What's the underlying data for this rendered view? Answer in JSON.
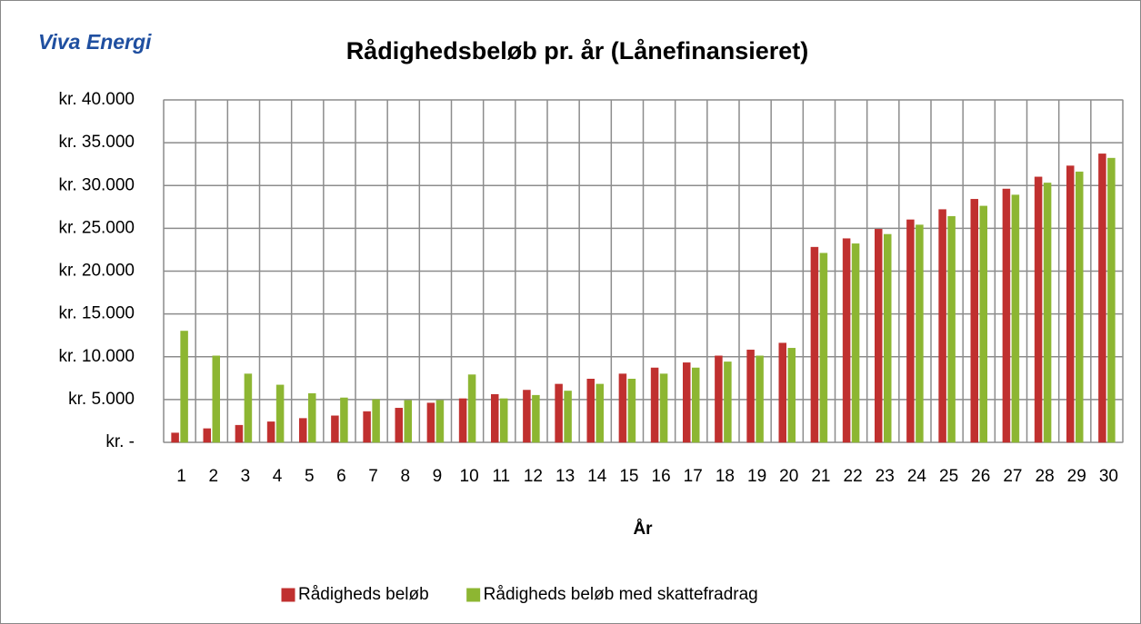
{
  "chart_data": {
    "type": "bar",
    "logo": "Viva Energi",
    "title": "Rådighedsbeløb pr. år (Lånefinansieret)",
    "x_label": "År",
    "categories": [
      "1",
      "2",
      "3",
      "4",
      "5",
      "6",
      "7",
      "8",
      "9",
      "10",
      "11",
      "12",
      "13",
      "14",
      "15",
      "16",
      "17",
      "18",
      "19",
      "20",
      "21",
      "22",
      "23",
      "24",
      "25",
      "26",
      "27",
      "28",
      "29",
      "30"
    ],
    "series": [
      {
        "name": "Rådigheds beløb",
        "color": "#c0302f",
        "values": [
          1100,
          1600,
          2000,
          2400,
          2800,
          3100,
          3600,
          4000,
          4600,
          5100,
          5600,
          6100,
          6800,
          7400,
          8000,
          8700,
          9300,
          10100,
          10800,
          11600,
          22800,
          23800,
          24900,
          26000,
          27200,
          28400,
          29600,
          31000,
          32300,
          33700
        ]
      },
      {
        "name": "Rådigheds beløb med skattefradrag",
        "color": "#8db632",
        "values": [
          13000,
          10100,
          8000,
          6700,
          5700,
          5200,
          5000,
          4900,
          4900,
          7900,
          5100,
          5500,
          6000,
          6800,
          7400,
          8000,
          8700,
          9400,
          10100,
          11000,
          22100,
          23200,
          24300,
          25400,
          26400,
          27600,
          28900,
          30300,
          31600,
          33200
        ]
      }
    ],
    "ylim": [
      0,
      40000
    ],
    "yticks": [
      {
        "value": 0,
        "label": "kr. -"
      },
      {
        "value": 5000,
        "label": "kr. 5.000"
      },
      {
        "value": 10000,
        "label": "kr. 10.000"
      },
      {
        "value": 15000,
        "label": "kr. 15.000"
      },
      {
        "value": 20000,
        "label": "kr. 20.000"
      },
      {
        "value": 25000,
        "label": "kr. 25.000"
      },
      {
        "value": 30000,
        "label": "kr. 30.000"
      },
      {
        "value": 35000,
        "label": "kr. 35.000"
      },
      {
        "value": 40000,
        "label": "kr. 40.000"
      }
    ],
    "grid": true,
    "legend": "bottom"
  }
}
